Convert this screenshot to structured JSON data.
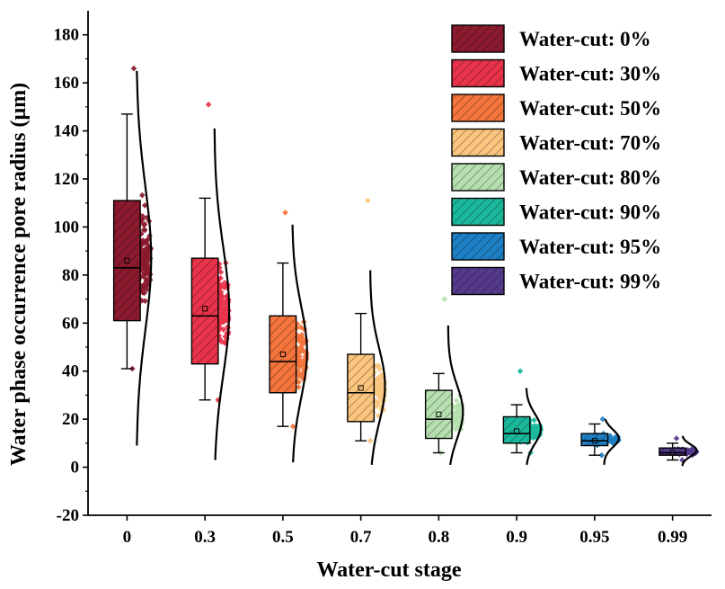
{
  "chart_data": {
    "type": "box",
    "xlabel": "Water-cut stage",
    "ylabel": "Water phase occurrence pore radius (μm)",
    "ylim": [
      -20,
      190
    ],
    "yticks": [
      -20,
      0,
      20,
      40,
      60,
      80,
      100,
      120,
      140,
      160,
      180
    ],
    "categories": [
      "0",
      "0.3",
      "0.5",
      "0.7",
      "0.8",
      "0.9",
      "0.95",
      "0.99"
    ],
    "legend_position": "top-right",
    "series": [
      {
        "name": "Water-cut: 0%",
        "color": "#8b1a2e",
        "whisker_low": 41,
        "q1": 61,
        "median": 83,
        "q3": 111,
        "whisker_high": 147,
        "mean": 86,
        "point_min": 41,
        "point_max": 166,
        "curve_min": 9,
        "curve_peak": 87,
        "curve_max": 165,
        "n_points": 220
      },
      {
        "name": "Water-cut: 30%",
        "color": "#e8334a",
        "whisker_low": 28,
        "q1": 43,
        "median": 63,
        "q3": 87,
        "whisker_high": 112,
        "mean": 66,
        "point_min": 28,
        "point_max": 151,
        "curve_min": 3,
        "curve_peak": 65,
        "curve_max": 141,
        "n_points": 200
      },
      {
        "name": "Water-cut: 50%",
        "color": "#f4743b",
        "whisker_low": 17,
        "q1": 31,
        "median": 44,
        "q3": 63,
        "whisker_high": 85,
        "mean": 47,
        "point_min": 17,
        "point_max": 106,
        "curve_min": 2,
        "curve_peak": 48,
        "curve_max": 101,
        "n_points": 180
      },
      {
        "name": "Water-cut: 70%",
        "color": "#fbc57d",
        "whisker_low": 11,
        "q1": 19,
        "median": 31,
        "q3": 47,
        "whisker_high": 64,
        "mean": 33,
        "point_min": 11,
        "point_max": 111,
        "curve_min": 1,
        "curve_peak": 34,
        "curve_max": 82,
        "n_points": 150
      },
      {
        "name": "Water-cut: 80%",
        "color": "#b6dfb0",
        "whisker_low": 6,
        "q1": 12,
        "median": 20,
        "q3": 32,
        "whisker_high": 39,
        "mean": 22,
        "point_min": 6,
        "point_max": 70,
        "curve_min": 1,
        "curve_peak": 23,
        "curve_max": 59,
        "n_points": 130
      },
      {
        "name": "Water-cut: 90%",
        "color": "#1ab89a",
        "whisker_low": 6,
        "q1": 10,
        "median": 14,
        "q3": 21,
        "whisker_high": 26,
        "mean": 15,
        "point_min": 6,
        "point_max": 40,
        "curve_min": 1,
        "curve_peak": 16,
        "curve_max": 33,
        "n_points": 120
      },
      {
        "name": "Water-cut: 95%",
        "color": "#1e7fc4",
        "whisker_low": 5,
        "q1": 9,
        "median": 11,
        "q3": 14,
        "whisker_high": 18,
        "mean": 11,
        "point_min": 5,
        "point_max": 20,
        "curve_min": 1,
        "curve_peak": 12,
        "curve_max": 20,
        "n_points": 100
      },
      {
        "name": "Water-cut: 99%",
        "color": "#553a8c",
        "whisker_low": 3,
        "q1": 5,
        "median": 6,
        "q3": 8,
        "whisker_high": 10,
        "mean": 6,
        "point_min": 3,
        "point_max": 12,
        "curve_min": 0.5,
        "curve_peak": 7,
        "curve_max": 13,
        "n_points": 90
      }
    ]
  }
}
